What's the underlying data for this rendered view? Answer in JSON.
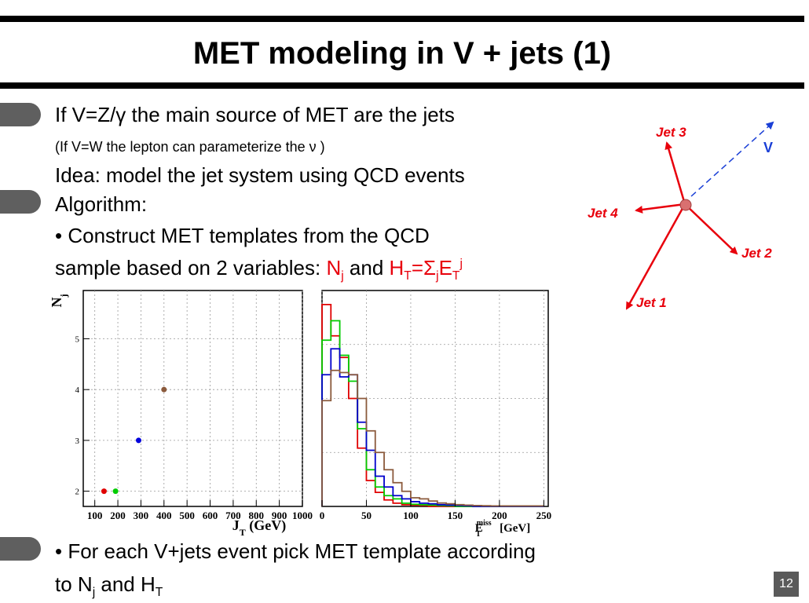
{
  "title": "MET modeling in V + jets (1)",
  "lines": {
    "l1": "If V=Z/γ the main source of MET are the jets",
    "l2": "(If V=W the lepton can parameterize the ν )",
    "l3": "Idea: model the jet system using QCD events",
    "l4": "Algorithm:",
    "l5": "• Construct MET templates from the QCD",
    "l6_pre": "sample based on 2 variables: ",
    "l6_N": "N",
    "l6_Nsub": "j",
    "l6_and": " and ",
    "l6_H": "H",
    "l6_Hsub": "T",
    "l6_eq": "=Σ",
    "l6_sum_sub": "j",
    "l6_E": "E",
    "l6_Esub": "T",
    "l6_Esup": "j",
    "l7": "• For each V+jets event pick MET template according",
    "l8_pre": "to N",
    "l8_Nsub": "j",
    "l8_and": " and H",
    "l8_Hsub": "T"
  },
  "diagram": {
    "jet1": "Jet 1",
    "jet2": "Jet 2",
    "jet3": "Jet 3",
    "jet4": "Jet 4",
    "v": "V",
    "colors": {
      "jet": "#e8000c",
      "v": "#1a3fd6",
      "vertex": "#d97070"
    }
  },
  "slide_number": "12",
  "chart_data": [
    {
      "type": "scatter",
      "ylabel": "N",
      "ylabel_sub": "j",
      "xlabel": "J",
      "xlabel_sub": "T",
      "xlabel_unit": " (GeV)",
      "xlim": [
        50,
        1000
      ],
      "ylim": [
        1.7,
        5.95
      ],
      "xticks": [
        100,
        200,
        300,
        400,
        500,
        600,
        700,
        800,
        900,
        1000
      ],
      "xtick_labels": [
        "100",
        "200",
        "300",
        "400",
        "500",
        "600",
        "700",
        "800",
        "900",
        "1000"
      ],
      "yticks": [
        2,
        3,
        4,
        5
      ],
      "ytick_labels": [
        "2",
        "3",
        "4",
        "5"
      ],
      "grid": true,
      "points": [
        {
          "x": 140,
          "y": 2,
          "color": "#e00000"
        },
        {
          "x": 190,
          "y": 2,
          "color": "#00cc00"
        },
        {
          "x": 290,
          "y": 3,
          "color": "#0000dd"
        },
        {
          "x": 400,
          "y": 4,
          "color": "#8b5a3c"
        }
      ]
    },
    {
      "type": "line",
      "step": true,
      "xlabel": "E",
      "xlabel_sup": "miss",
      "xlabel_sub": "T",
      "xlabel_unit": " [GeV]",
      "xlim": [
        0,
        255
      ],
      "ylim": [
        0,
        1
      ],
      "xticks": [
        0,
        50,
        100,
        150,
        200,
        250
      ],
      "xtick_labels": [
        "0",
        "50",
        "100",
        "150",
        "200",
        "250"
      ],
      "bin_width": 10,
      "grid": true,
      "series": [
        {
          "color": "#e00000",
          "values": [
            0.935,
            0.79,
            0.69,
            0.5,
            0.27,
            0.12,
            0.065,
            0.03,
            0.015,
            0.008,
            0.006,
            0.004,
            0,
            0,
            0,
            0,
            0,
            0,
            0,
            0,
            0,
            0,
            0,
            0,
            0
          ]
        },
        {
          "color": "#00cc00",
          "values": [
            0.77,
            0.86,
            0.7,
            0.58,
            0.36,
            0.17,
            0.09,
            0.05,
            0.035,
            0.015,
            0.01,
            0.008,
            0.006,
            0.004,
            0.003,
            0,
            0,
            0,
            0,
            0,
            0,
            0,
            0,
            0,
            0
          ]
        },
        {
          "color": "#0000cc",
          "values": [
            0.61,
            0.73,
            0.6,
            0.61,
            0.39,
            0.26,
            0.14,
            0.09,
            0.05,
            0.035,
            0.022,
            0.015,
            0.012,
            0.008,
            0.006,
            0.004,
            0.003,
            0,
            0,
            0,
            0,
            0,
            0,
            0,
            0
          ]
        },
        {
          "color": "#8b5a3c",
          "values": [
            0.49,
            0.63,
            0.62,
            0.61,
            0.5,
            0.35,
            0.25,
            0.17,
            0.11,
            0.07,
            0.04,
            0.035,
            0.025,
            0.016,
            0.012,
            0.008,
            0.006,
            0.004,
            0.003,
            0.002,
            0.002,
            0.002,
            0.002,
            0.002,
            0.002
          ]
        }
      ]
    }
  ]
}
